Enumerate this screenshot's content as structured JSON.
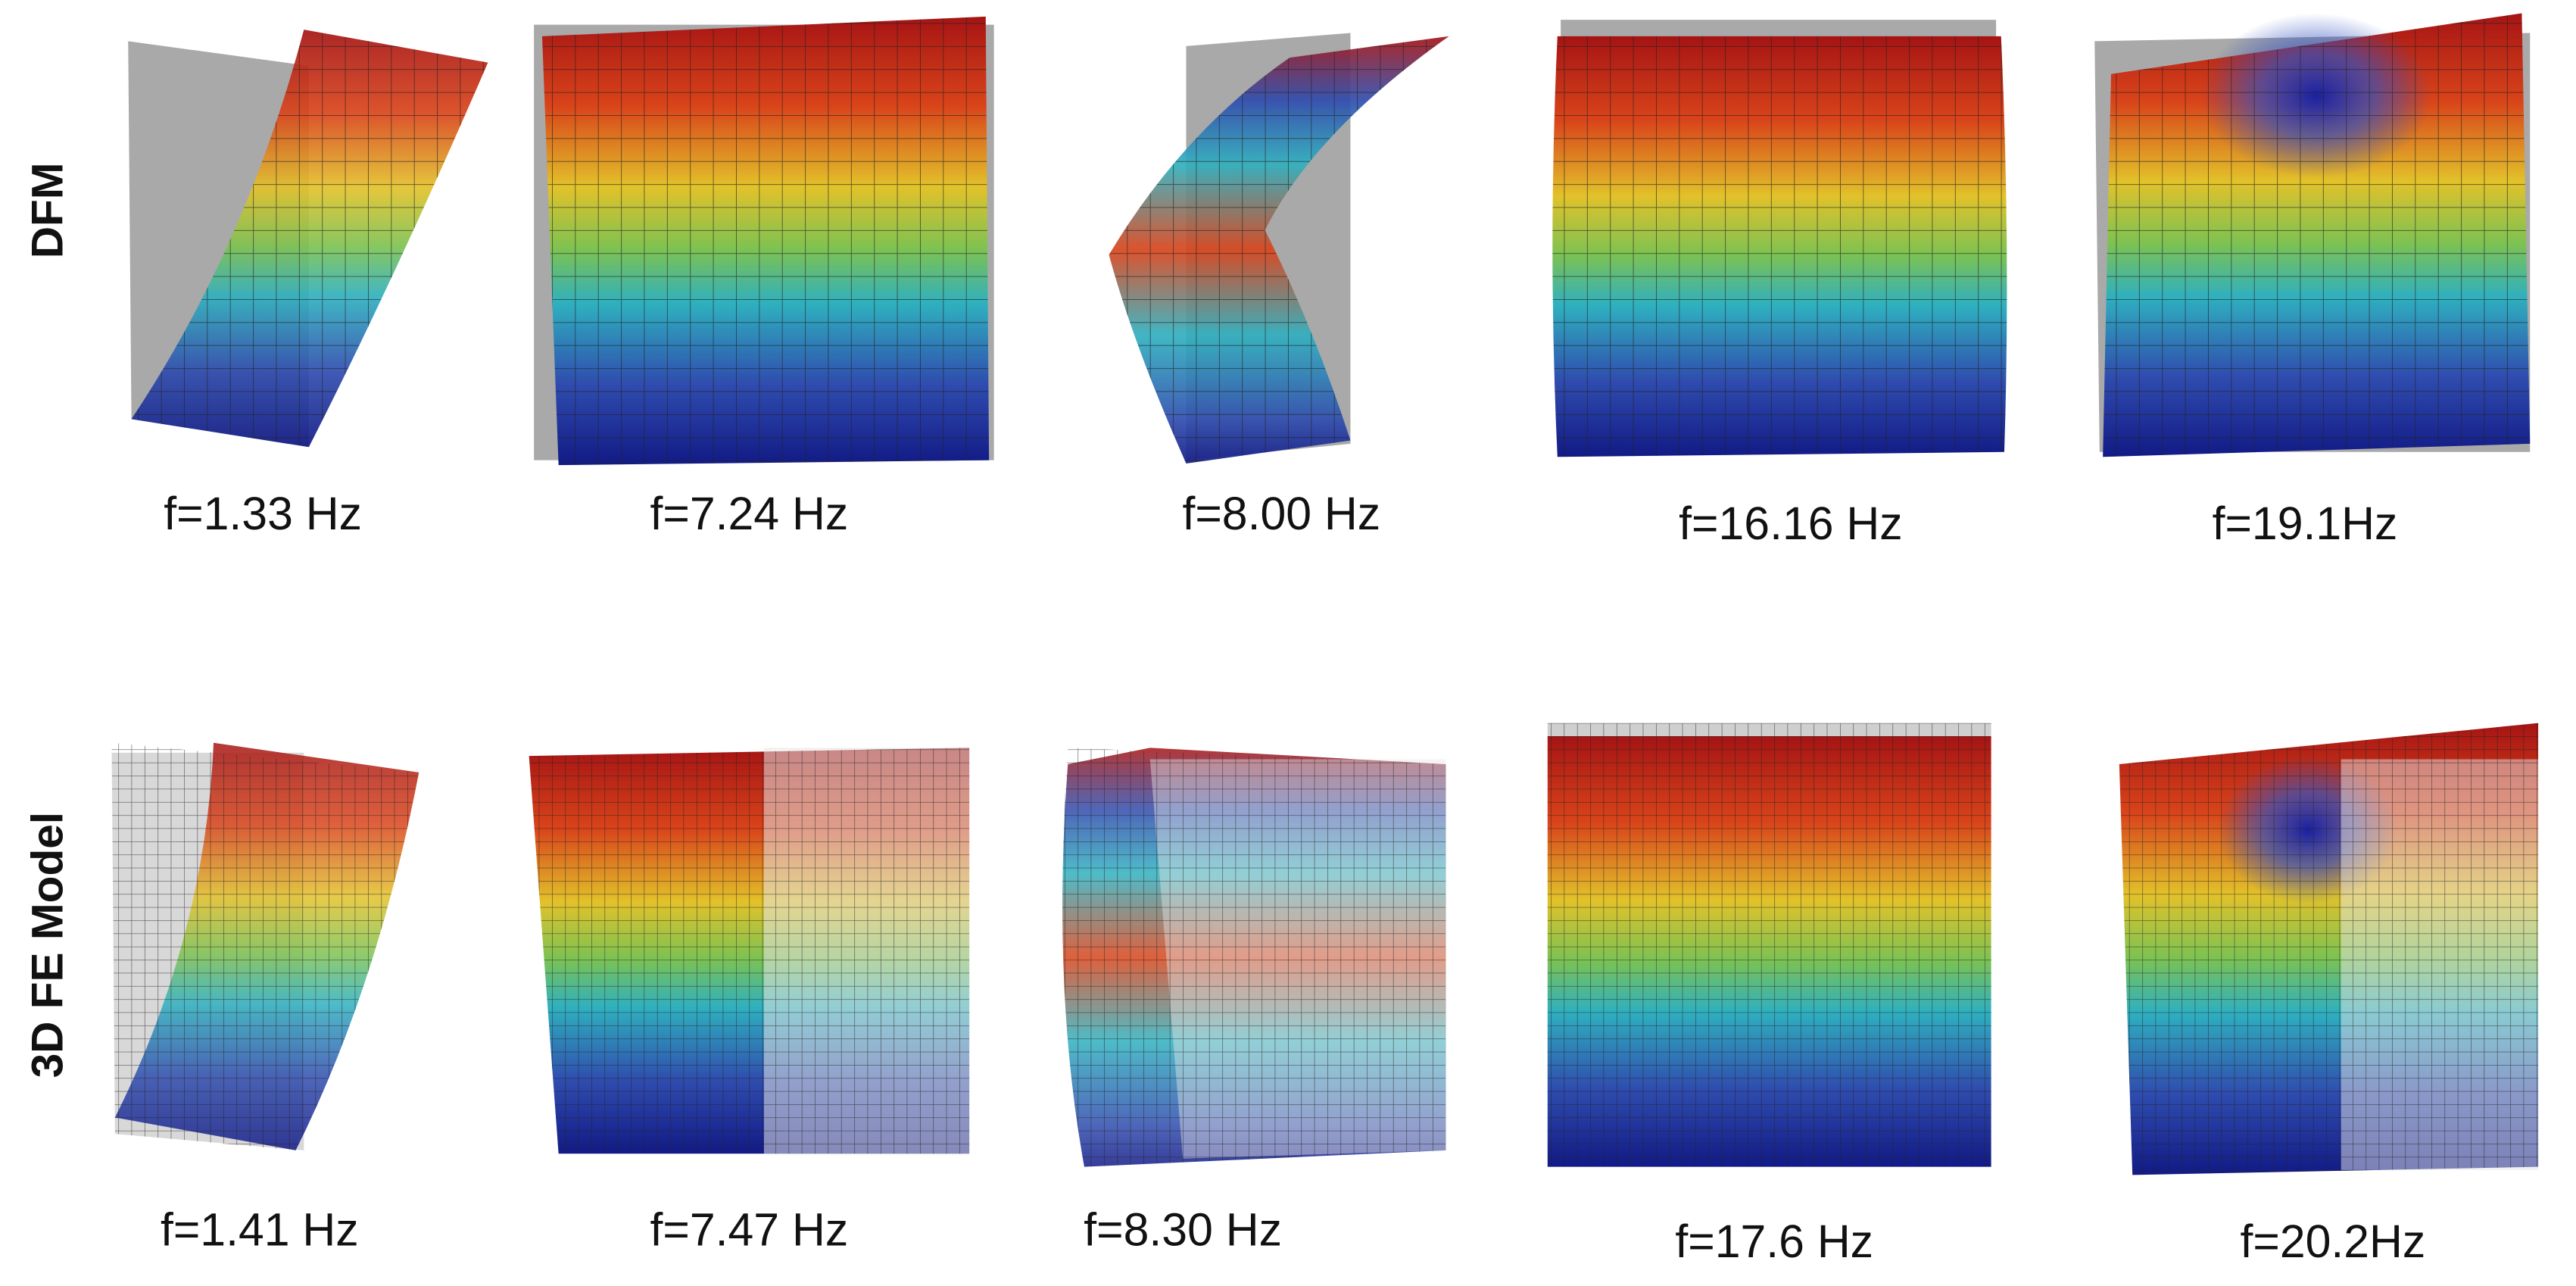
{
  "rows": [
    {
      "label": "DFM",
      "modes": [
        "f=1.33 Hz",
        "f=7.24 Hz",
        "f=8.00 Hz",
        "f=16.16 Hz",
        "f=19.1Hz"
      ]
    },
    {
      "label": "3D FE Model",
      "modes": [
        "f=1.41 Hz",
        "f=7.47 Hz",
        "f=8.30 Hz",
        "f=17.6 Hz",
        "f=20.2Hz"
      ]
    }
  ]
}
